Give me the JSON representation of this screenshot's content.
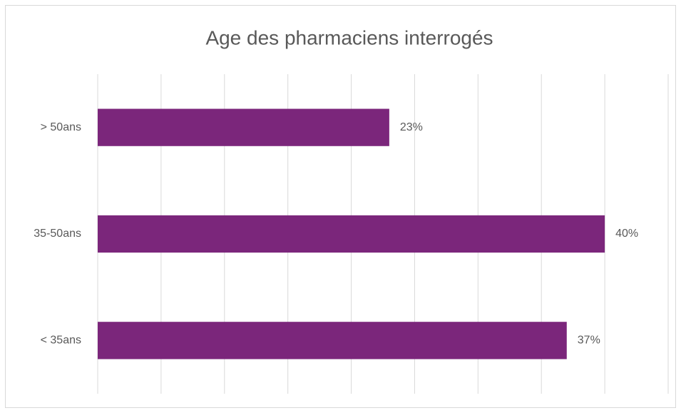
{
  "chart_data": {
    "type": "hbar",
    "title": "Age des pharmaciens interrogés",
    "categories": [
      "> 50ans",
      "35-50ans",
      "< 35ans"
    ],
    "values": [
      23,
      40,
      37
    ],
    "value_labels": [
      "23%",
      "40%",
      "37%"
    ],
    "color": "#7b267b",
    "xlim": [
      0,
      45
    ],
    "xticks": [
      0,
      5,
      10,
      15,
      20,
      25,
      30,
      35,
      40,
      45
    ],
    "grid": true
  }
}
